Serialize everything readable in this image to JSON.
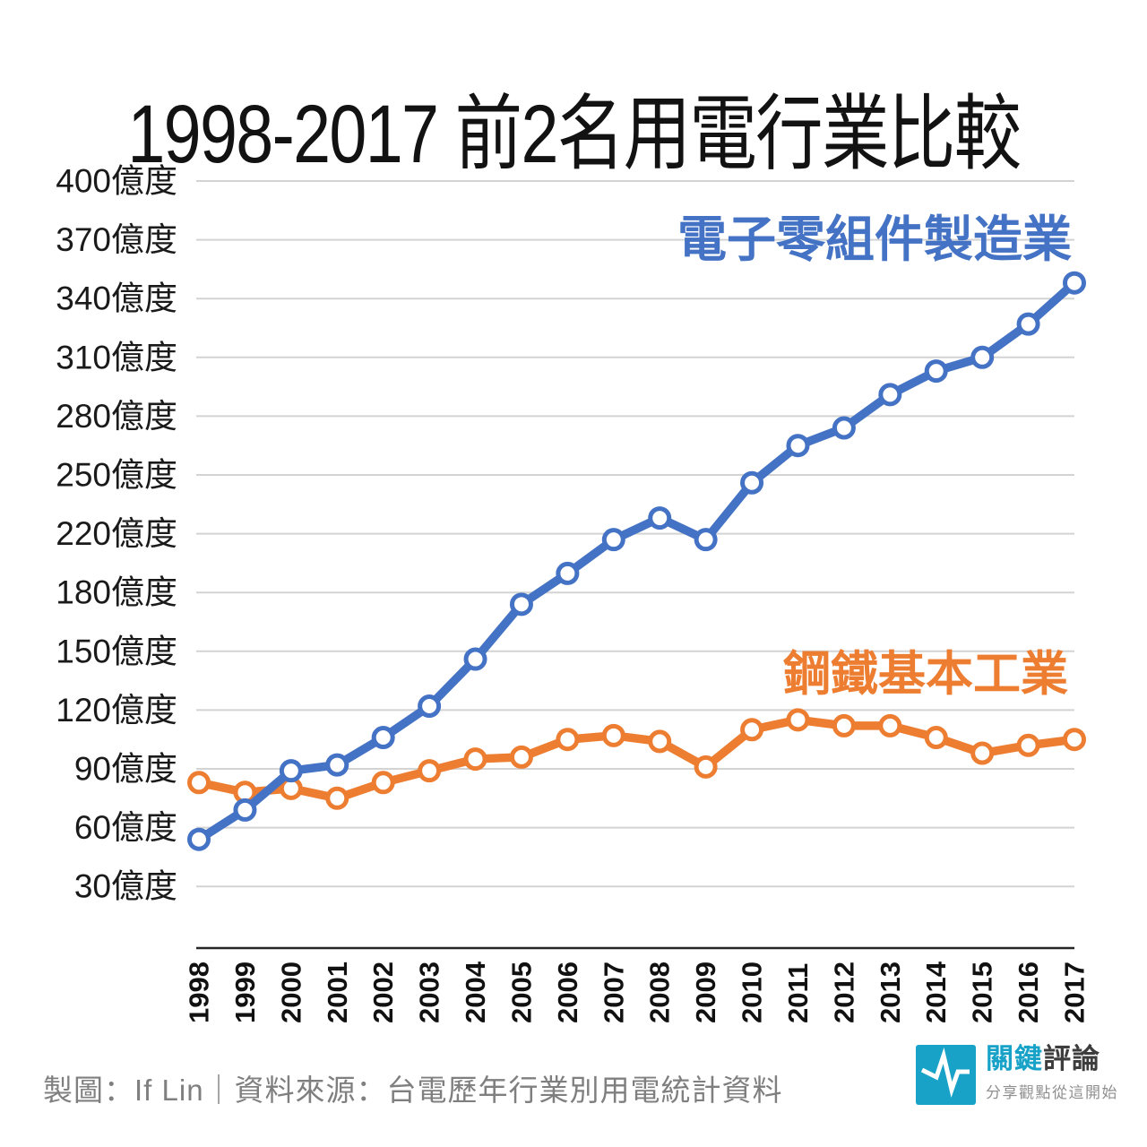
{
  "title": "1998-2017 前2名用電行業比較",
  "footer": {
    "credit": "製圖：If Lin｜資料來源：台電歷年行業別用電統計資料"
  },
  "logo": {
    "brand_primary": "關鍵",
    "brand_secondary": "評論",
    "tagline": "分享觀點從這開始",
    "color": "#18a2c8",
    "text_color": "#3d3d3d",
    "tagline_color": "#8f8f8f"
  },
  "colors": {
    "grid": "#d3d3d3",
    "axis": "#262626",
    "tick_text": "#1a1a1a"
  },
  "chart_data": {
    "type": "line",
    "title": "1998-2017 前2名用電行業比較",
    "xlabel": "",
    "ylabel": "億度",
    "grid": true,
    "legend_position": "inline-annotations",
    "x": [
      "1998",
      "1999",
      "2000",
      "2001",
      "2002",
      "2003",
      "2004",
      "2005",
      "2006",
      "2007",
      "2008",
      "2009",
      "2010",
      "2011",
      "2012",
      "2013",
      "2014",
      "2015",
      "2016",
      "2017"
    ],
    "y_ticks": [
      {
        "value": 400,
        "label": "400億度"
      },
      {
        "value": 370,
        "label": "370億度"
      },
      {
        "value": 340,
        "label": "340億度"
      },
      {
        "value": 310,
        "label": "310億度"
      },
      {
        "value": 280,
        "label": "280億度"
      },
      {
        "value": 250,
        "label": "250億度"
      },
      {
        "value": 220,
        "label": "220億度"
      },
      {
        "value": 180,
        "label": "180億度"
      },
      {
        "value": 150,
        "label": "150億度"
      },
      {
        "value": 120,
        "label": "120億度"
      },
      {
        "value": 90,
        "label": "90億度"
      },
      {
        "value": 60,
        "label": "60億度"
      },
      {
        "value": 30,
        "label": "30億度"
      }
    ],
    "series": [
      {
        "name": "電子零組件製造業",
        "color": "#4472c4",
        "values": [
          54,
          69,
          89,
          92,
          106,
          122,
          146,
          174,
          193,
          216,
          228,
          216,
          246,
          265,
          274,
          291,
          303,
          310,
          327,
          348
        ]
      },
      {
        "name": "鋼鐵基本工業",
        "color": "#ed7d31",
        "values": [
          83,
          78,
          80,
          75,
          83,
          89,
          95,
          96,
          105,
          107,
          104,
          91,
          110,
          115,
          112,
          112,
          106,
          98,
          102,
          105
        ]
      }
    ]
  }
}
